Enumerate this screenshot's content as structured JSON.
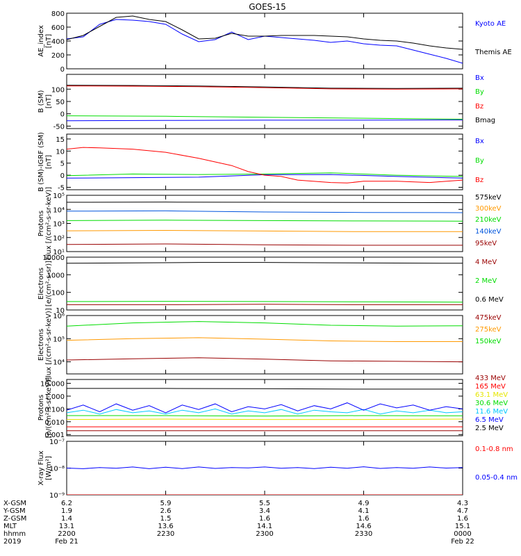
{
  "title": "GOES-15",
  "colors": {
    "black": "#000000",
    "blue": "#0000ff",
    "green": "#00dd00",
    "red": "#ff0000",
    "darkred": "#990000",
    "orange": "#ff9900",
    "yellow": "#e6e600",
    "cyan": "#00c8ff",
    "mediumblue": "#0055dd",
    "magenta": "#cc00cc",
    "brown": "#993300"
  },
  "time_axis": {
    "row_labels": [
      "X-GSM",
      "Y-GSM",
      "Z-GSM",
      "MLT",
      "hhmm",
      "2019"
    ],
    "columns": [
      {
        "t": 0,
        "values": [
          "6.2",
          "1.9",
          "1.4",
          "13.1",
          "2200",
          "Feb 21"
        ]
      },
      {
        "t": 30,
        "values": [
          "5.9",
          "2.6",
          "1.5",
          "13.6",
          "2230",
          ""
        ]
      },
      {
        "t": 60,
        "values": [
          "5.5",
          "3.4",
          "1.6",
          "14.1",
          "2300",
          ""
        ]
      },
      {
        "t": 90,
        "values": [
          "4.9",
          "4.1",
          "1.6",
          "14.6",
          "2330",
          ""
        ]
      },
      {
        "t": 120,
        "values": [
          "4.3",
          "4.7",
          "1.6",
          "15.1",
          "0000",
          "Feb 22"
        ]
      }
    ]
  },
  "chart_data": [
    {
      "type": "line",
      "ylabel": "AE_index\n[nT]",
      "ylim": [
        0,
        800
      ],
      "yscale": "linear",
      "ticks": [
        {
          "v": 0,
          "label": "0"
        },
        {
          "v": 200,
          "label": "200"
        },
        {
          "v": 400,
          "label": "400"
        },
        {
          "v": 600,
          "label": "600"
        },
        {
          "v": 800,
          "label": "800"
        }
      ],
      "xlim": [
        0,
        120
      ],
      "series": [
        {
          "name": "Kyoto AE",
          "color": "#0000ff",
          "x": [
            0,
            5,
            10,
            15,
            20,
            25,
            30,
            35,
            40,
            45,
            50,
            55,
            60,
            65,
            70,
            75,
            80,
            85,
            90,
            95,
            100,
            105,
            110,
            115,
            120
          ],
          "y": [
            430,
            460,
            640,
            710,
            700,
            680,
            640,
            500,
            390,
            420,
            530,
            420,
            470,
            450,
            430,
            410,
            380,
            400,
            360,
            340,
            330,
            270,
            210,
            150,
            80
          ]
        },
        {
          "name": "Themis AE",
          "color": "#000000",
          "x": [
            0,
            5,
            10,
            15,
            20,
            25,
            30,
            35,
            40,
            45,
            50,
            55,
            60,
            65,
            70,
            75,
            80,
            85,
            90,
            95,
            100,
            105,
            110,
            115,
            120
          ],
          "y": [
            420,
            480,
            610,
            740,
            760,
            710,
            680,
            560,
            430,
            440,
            510,
            470,
            470,
            480,
            480,
            480,
            470,
            460,
            430,
            410,
            400,
            370,
            330,
            300,
            280
          ]
        }
      ]
    },
    {
      "type": "line",
      "ylabel": "B (SM)\n[nT]",
      "ylim": [
        -60,
        160
      ],
      "yscale": "linear",
      "ticks": [
        {
          "v": -50,
          "label": "-50"
        },
        {
          "v": 0,
          "label": "0"
        },
        {
          "v": 50,
          "label": "50"
        },
        {
          "v": 100,
          "label": "100"
        }
      ],
      "xlim": [
        0,
        120
      ],
      "series": [
        {
          "name": "Bx",
          "color": "#0000ff",
          "x": [
            0,
            30,
            60,
            90,
            120
          ],
          "y": [
            -28,
            -27,
            -26,
            -26,
            -25
          ]
        },
        {
          "name": "By",
          "color": "#00dd00",
          "x": [
            0,
            30,
            60,
            90,
            120
          ],
          "y": [
            -8,
            -10,
            -14,
            -18,
            -22
          ]
        },
        {
          "name": "Bz",
          "color": "#ff0000",
          "x": [
            0,
            20,
            40,
            60,
            80,
            100,
            120
          ],
          "y": [
            113,
            112,
            110,
            106,
            101,
            100,
            101
          ]
        },
        {
          "name": "Bmag",
          "color": "#000000",
          "x": [
            0,
            20,
            40,
            60,
            80,
            100,
            120
          ],
          "y": [
            116,
            115,
            113,
            109,
            104,
            103,
            104
          ]
        }
      ]
    },
    {
      "type": "line",
      "ylabel": "B (SM)-IGRF (SM)\n[nT]",
      "ylim": [
        -6,
        17
      ],
      "yscale": "linear",
      "ticks": [
        {
          "v": -5,
          "label": "-5"
        },
        {
          "v": 0,
          "label": "0"
        },
        {
          "v": 5,
          "label": "5"
        },
        {
          "v": 10,
          "label": "10"
        },
        {
          "v": 15,
          "label": "15"
        }
      ],
      "xlim": [
        0,
        120
      ],
      "series": [
        {
          "name": "Bx",
          "color": "#0000ff",
          "x": [
            0,
            20,
            40,
            60,
            80,
            100,
            120
          ],
          "y": [
            -1.2,
            -1,
            -0.8,
            0.2,
            0.3,
            -0.5,
            -1.2
          ]
        },
        {
          "name": "By",
          "color": "#00dd00",
          "x": [
            0,
            20,
            40,
            60,
            80,
            100,
            120
          ],
          "y": [
            -0.2,
            0.5,
            0.3,
            0.5,
            1,
            0,
            -0.5
          ]
        },
        {
          "name": "Bz",
          "color": "#ff0000",
          "x": [
            0,
            5,
            10,
            20,
            30,
            40,
            50,
            55,
            60,
            65,
            70,
            80,
            85,
            90,
            100,
            110,
            120
          ],
          "y": [
            10.8,
            11.5,
            11.3,
            10.8,
            9.5,
            7,
            4,
            1.5,
            0,
            -0.5,
            -2,
            -3,
            -3.2,
            -2.5,
            -2.5,
            -3,
            -2
          ]
        }
      ]
    },
    {
      "type": "line",
      "ylabel": "Protons\nFlux [/(cm²-s-sr-keV)]",
      "ylim": [
        10,
        100000
      ],
      "yscale": "log",
      "ticks": [
        {
          "v": 10,
          "label": "10¹"
        },
        {
          "v": 100,
          "label": "10²"
        },
        {
          "v": 1000,
          "label": "10³"
        },
        {
          "v": 10000,
          "label": "10⁴"
        },
        {
          "v": 100000,
          "label": "10⁵"
        }
      ],
      "xlim": [
        0,
        120
      ],
      "series": [
        {
          "name": "575keV",
          "color": "#000000",
          "x": [
            0,
            30,
            60,
            90,
            120
          ],
          "y": [
            32000,
            33000,
            32000,
            31000,
            30000
          ]
        },
        {
          "name": "300keV",
          "color": "#ff9900",
          "x": [
            0,
            30,
            60,
            90,
            120
          ],
          "y": [
            300,
            320,
            290,
            260,
            260
          ]
        },
        {
          "name": "210keV",
          "color": "#00dd00",
          "x": [
            0,
            30,
            60,
            90,
            120
          ],
          "y": [
            1600,
            1700,
            1600,
            1500,
            1450
          ]
        },
        {
          "name": "140keV",
          "color": "#0055dd",
          "x": [
            0,
            30,
            60,
            90,
            120
          ],
          "y": [
            7500,
            7800,
            6500,
            6000,
            5800
          ]
        },
        {
          "name": "95keV",
          "color": "#990000",
          "x": [
            0,
            30,
            60,
            90,
            120
          ],
          "y": [
            32,
            35,
            30,
            28,
            28
          ]
        }
      ]
    },
    {
      "type": "line",
      "ylabel": "Electrons\n[e/(cm²-s-sr)]",
      "ylim": [
        10,
        10000
      ],
      "yscale": "log",
      "ticks": [
        {
          "v": 10,
          "label": "10"
        },
        {
          "v": 100,
          "label": "100"
        },
        {
          "v": 1000,
          "label": "1000"
        },
        {
          "v": 10000,
          "label": "10000"
        }
      ],
      "xlim": [
        0,
        120
      ],
      "series": [
        {
          "name": "4 MeV",
          "color": "#990000",
          "x": [
            0,
            30,
            60,
            90,
            120
          ],
          "y": [
            20,
            20,
            21,
            20,
            20
          ]
        },
        {
          "name": "2 MeV",
          "color": "#00dd00",
          "x": [
            0,
            30,
            60,
            90,
            120
          ],
          "y": [
            30,
            31,
            30,
            29,
            28
          ]
        },
        {
          "name": "0.6 MeV",
          "color": "#000000",
          "x": [
            0,
            20,
            40,
            60,
            80,
            100,
            120
          ],
          "y": [
            4500,
            4700,
            5000,
            5000,
            4800,
            4600,
            4500
          ]
        }
      ]
    },
    {
      "type": "line",
      "ylabel": "Electrons\nFlux [/(cm²-s-sr-keV)]",
      "ylim": [
        3000,
        1000000
      ],
      "yscale": "log",
      "ticks": [
        {
          "v": 10000,
          "label": "10⁴"
        },
        {
          "v": 100000,
          "label": "10⁵"
        },
        {
          "v": 1000000,
          "label": "10⁶"
        }
      ],
      "xlim": [
        0,
        120
      ],
      "series": [
        {
          "name": "475keV",
          "color": "#990000",
          "x": [
            0,
            20,
            40,
            60,
            80,
            100,
            120
          ],
          "y": [
            12000,
            13500,
            15000,
            13000,
            11000,
            10500,
            10000
          ]
        },
        {
          "name": "275keV",
          "color": "#ff9900",
          "x": [
            0,
            20,
            40,
            60,
            80,
            100,
            120
          ],
          "y": [
            85000,
            100000,
            110000,
            95000,
            80000,
            75000,
            75000
          ]
        },
        {
          "name": "150keV",
          "color": "#00dd00",
          "x": [
            0,
            20,
            40,
            60,
            80,
            100,
            120
          ],
          "y": [
            350000,
            480000,
            550000,
            480000,
            380000,
            350000,
            360000
          ]
        }
      ]
    },
    {
      "type": "line",
      "ylabel": "Protons\n[p/(cm²-s-sr-keV)]",
      "ylim": [
        0.0008,
        20
      ],
      "yscale": "log",
      "ticks": [
        {
          "v": 0.001,
          "label": "0.001"
        },
        {
          "v": 0.01,
          "label": "0.010"
        },
        {
          "v": 0.1,
          "label": "0.100"
        },
        {
          "v": 1,
          "label": "1.000"
        },
        {
          "v": 10,
          "label": "10.000"
        }
      ],
      "xlim": [
        0,
        120
      ],
      "series": [
        {
          "name": "433 MeV",
          "color": "#990000",
          "x": [
            0,
            30,
            60,
            90,
            120
          ],
          "y": [
            0.002,
            0.002,
            0.002,
            0.002,
            0.002
          ]
        },
        {
          "name": "165 MeV",
          "color": "#ff0000",
          "x": [
            0,
            30,
            60,
            90,
            120
          ],
          "y": [
            0.004,
            0.004,
            0.004,
            0.004,
            0.004
          ]
        },
        {
          "name": "63.1 MeV",
          "color": "#e6e600",
          "x": [
            0,
            30,
            60,
            90,
            120
          ],
          "y": [
            0.015,
            0.016,
            0.015,
            0.015,
            0.016
          ]
        },
        {
          "name": "30.6 MeV",
          "color": "#00dd00",
          "x": [
            0,
            30,
            60,
            90,
            120
          ],
          "y": [
            0.03,
            0.03,
            0.028,
            0.03,
            0.029
          ]
        },
        {
          "name": "11.6 MeV",
          "color": "#00c8ff",
          "x": [
            0,
            5,
            10,
            15,
            20,
            25,
            30,
            35,
            40,
            45,
            50,
            55,
            60,
            65,
            70,
            75,
            80,
            85,
            90,
            95,
            100,
            105,
            110,
            115,
            120
          ],
          "y": [
            0.05,
            0.08,
            0.04,
            0.09,
            0.05,
            0.07,
            0.04,
            0.08,
            0.05,
            0.1,
            0.04,
            0.07,
            0.05,
            0.09,
            0.04,
            0.08,
            0.06,
            0.05,
            0.09,
            0.04,
            0.07,
            0.05,
            0.08,
            0.05,
            0.06
          ]
        },
        {
          "name": "6.5 MeV",
          "color": "#0000ff",
          "x": [
            0,
            5,
            10,
            15,
            20,
            25,
            30,
            35,
            40,
            45,
            50,
            55,
            60,
            65,
            70,
            75,
            80,
            85,
            90,
            95,
            100,
            105,
            110,
            115,
            120
          ],
          "y": [
            0.08,
            0.2,
            0.06,
            0.25,
            0.08,
            0.18,
            0.05,
            0.2,
            0.09,
            0.25,
            0.06,
            0.15,
            0.1,
            0.22,
            0.07,
            0.18,
            0.1,
            0.3,
            0.08,
            0.25,
            0.12,
            0.2,
            0.08,
            0.15,
            0.1
          ]
        },
        {
          "name": "2.5 MeV",
          "color": "#000000",
          "x": [
            0,
            30,
            60,
            90,
            120
          ],
          "y": [
            4,
            4,
            3.8,
            3.5,
            3.5
          ]
        }
      ]
    },
    {
      "type": "line",
      "ylabel": "X-ray Flux\n[W/m²]",
      "ylim": [
        1e-09,
        1e-07
      ],
      "yscale": "log",
      "ticks": [
        {
          "v": 1e-09,
          "label": "10⁻⁹"
        },
        {
          "v": 1e-08,
          "label": "10⁻⁸"
        },
        {
          "v": 1e-07,
          "label": "10⁻⁷"
        }
      ],
      "xlim": [
        0,
        120
      ],
      "series": [
        {
          "name": "0.1-0.8 nm",
          "color": "#ff0000",
          "x": [
            0,
            30,
            60,
            90,
            120
          ],
          "y": [
            1e-09,
            1e-09,
            1e-09,
            1e-09,
            1e-09
          ]
        },
        {
          "name": "0.05-0.4 nm",
          "color": "#0000ff",
          "x": [
            0,
            5,
            10,
            15,
            20,
            25,
            30,
            35,
            40,
            45,
            50,
            55,
            60,
            65,
            70,
            75,
            80,
            85,
            90,
            95,
            100,
            105,
            110,
            115,
            120
          ],
          "y": [
            1e-08,
            9.5e-09,
            1.05e-08,
            9.8e-09,
            1.1e-08,
            9.5e-09,
            1.08e-08,
            9.6e-09,
            1.1e-08,
            9.7e-09,
            1.05e-08,
            1.02e-08,
            1.1e-08,
            9.8e-09,
            1.05e-08,
            9.6e-09,
            1.08e-08,
            9.9e-09,
            1.12e-08,
            9.7e-09,
            1.05e-08,
            9.9e-09,
            1.1e-08,
            1e-08,
            1.05e-08
          ]
        }
      ]
    }
  ]
}
